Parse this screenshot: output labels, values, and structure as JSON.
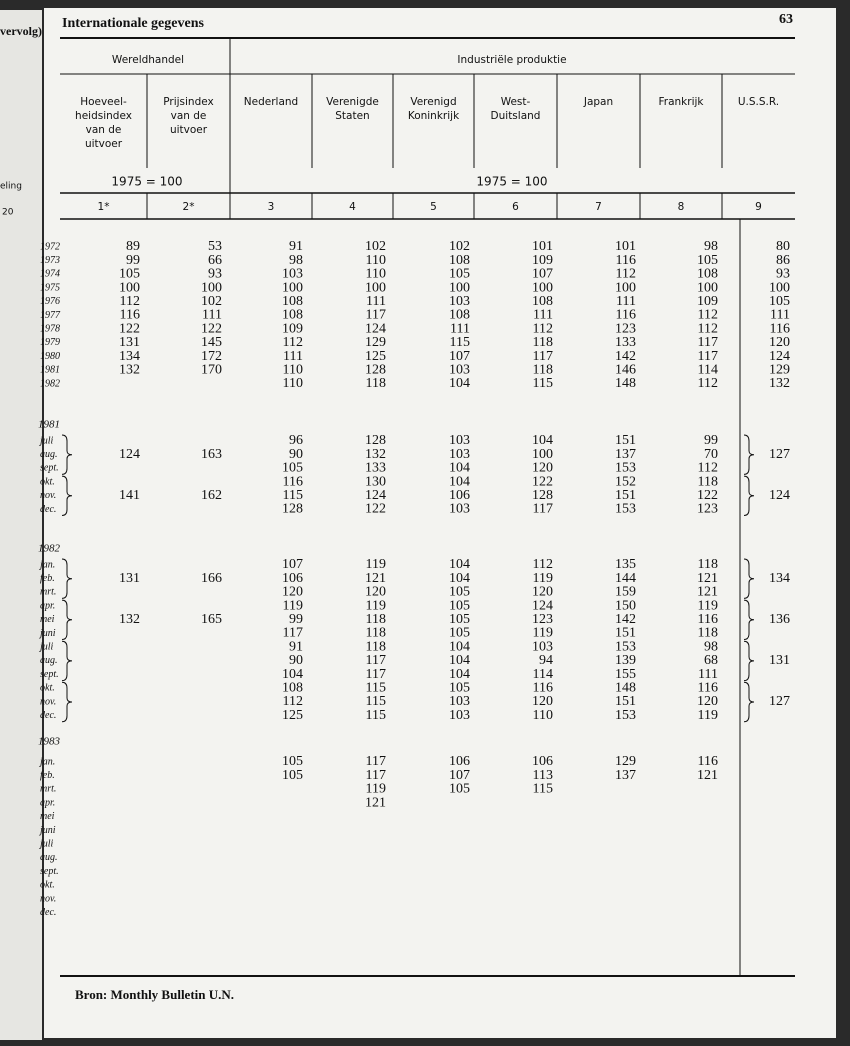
{
  "header": {
    "title": "Internationale gegevens",
    "page": "63",
    "margin_note": "vervolg)"
  },
  "margin_labels": [
    "eling",
    "20"
  ],
  "table": {
    "groups": [
      "Wereldhandel",
      "Industriële produktie"
    ],
    "columns": [
      [
        "Hoeveel-",
        "heidsindex",
        "van de",
        "uitvoer"
      ],
      [
        "Prijsindex",
        "van de",
        "uitvoer"
      ],
      [
        "Nederland"
      ],
      [
        "Verenigde",
        "Staten"
      ],
      [
        "Verenigd",
        "Koninkrijk"
      ],
      [
        "West-",
        "Duitsland"
      ],
      [
        "Japan"
      ],
      [
        "Frankrijk"
      ],
      [
        "U.S.S.R."
      ]
    ],
    "base": [
      "1975 = 100",
      "1975 = 100"
    ],
    "column_numbers": [
      "1*",
      "2*",
      "3",
      "4",
      "5",
      "6",
      "7",
      "8",
      "9"
    ],
    "sections": [
      {
        "label": null,
        "rows": [
          {
            "label": "1972",
            "cells": [
              89,
              53,
              91,
              102,
              102,
              101,
              101,
              98,
              80
            ]
          },
          {
            "label": "1973",
            "cells": [
              99,
              66,
              98,
              110,
              108,
              109,
              116,
              105,
              86
            ]
          },
          {
            "label": "1974",
            "cells": [
              105,
              93,
              103,
              110,
              105,
              107,
              112,
              108,
              93
            ]
          },
          {
            "label": "1975",
            "cells": [
              100,
              100,
              100,
              100,
              100,
              100,
              100,
              100,
              100
            ]
          },
          {
            "label": "1976",
            "cells": [
              112,
              102,
              108,
              111,
              103,
              108,
              111,
              109,
              105
            ]
          },
          {
            "label": "1977",
            "cells": [
              116,
              111,
              108,
              117,
              108,
              111,
              116,
              112,
              111
            ]
          },
          {
            "label": "1978",
            "cells": [
              122,
              122,
              109,
              124,
              111,
              112,
              123,
              112,
              116
            ]
          },
          {
            "label": "1979",
            "cells": [
              131,
              145,
              112,
              129,
              115,
              118,
              133,
              117,
              120
            ]
          },
          {
            "label": "1980",
            "cells": [
              134,
              172,
              111,
              125,
              107,
              117,
              142,
              117,
              124
            ]
          },
          {
            "label": "1981",
            "cells": [
              132,
              170,
              110,
              128,
              103,
              118,
              146,
              114,
              129
            ]
          },
          {
            "label": "1982",
            "cells": [
              null,
              null,
              110,
              118,
              104,
              115,
              148,
              112,
              132
            ]
          }
        ]
      },
      {
        "label": "1981",
        "rows": [
          {
            "label": "juli",
            "cells": [
              null,
              null,
              96,
              128,
              103,
              104,
              151,
              99,
              null
            ]
          },
          {
            "label": "aug.",
            "cells": [
              124,
              163,
              90,
              132,
              103,
              100,
              137,
              70,
              127
            ]
          },
          {
            "label": "sept.",
            "cells": [
              null,
              null,
              105,
              133,
              104,
              120,
              153,
              112,
              null
            ]
          },
          {
            "label": "okt.",
            "cells": [
              null,
              null,
              116,
              130,
              104,
              122,
              152,
              118,
              null
            ]
          },
          {
            "label": "nov.",
            "cells": [
              141,
              162,
              115,
              124,
              106,
              128,
              151,
              122,
              124
            ]
          },
          {
            "label": "dec.",
            "cells": [
              null,
              null,
              128,
              122,
              103,
              117,
              153,
              123,
              null
            ]
          }
        ]
      },
      {
        "label": "1982",
        "rows": [
          {
            "label": "jan.",
            "cells": [
              null,
              null,
              107,
              119,
              104,
              112,
              135,
              118,
              null
            ]
          },
          {
            "label": "feb.",
            "cells": [
              131,
              166,
              106,
              121,
              104,
              119,
              144,
              121,
              134
            ]
          },
          {
            "label": "mrt.",
            "cells": [
              null,
              null,
              120,
              120,
              105,
              120,
              159,
              121,
              null
            ]
          },
          {
            "label": "apr.",
            "cells": [
              null,
              null,
              119,
              119,
              105,
              124,
              150,
              119,
              null
            ]
          },
          {
            "label": "mei",
            "cells": [
              132,
              165,
              99,
              118,
              105,
              123,
              142,
              116,
              136
            ]
          },
          {
            "label": "juni",
            "cells": [
              null,
              null,
              117,
              118,
              105,
              119,
              151,
              118,
              null
            ]
          },
          {
            "label": "juli",
            "cells": [
              null,
              null,
              91,
              118,
              104,
              103,
              153,
              98,
              null
            ]
          },
          {
            "label": "aug.",
            "cells": [
              null,
              null,
              90,
              117,
              104,
              94,
              139,
              68,
              131
            ]
          },
          {
            "label": "sept.",
            "cells": [
              null,
              null,
              104,
              117,
              104,
              114,
              155,
              111,
              null
            ]
          },
          {
            "label": "okt.",
            "cells": [
              null,
              null,
              108,
              115,
              105,
              116,
              148,
              116,
              null
            ]
          },
          {
            "label": "nov.",
            "cells": [
              null,
              null,
              112,
              115,
              103,
              120,
              151,
              120,
              127
            ]
          },
          {
            "label": "dec.",
            "cells": [
              null,
              null,
              125,
              115,
              103,
              110,
              153,
              119,
              null
            ]
          }
        ]
      },
      {
        "label": "1983",
        "rows": [
          {
            "label": "jan.",
            "cells": [
              null,
              null,
              105,
              117,
              106,
              106,
              129,
              116,
              null
            ]
          },
          {
            "label": "feb.",
            "cells": [
              null,
              null,
              105,
              117,
              107,
              113,
              137,
              121,
              null
            ]
          },
          {
            "label": "mrt.",
            "cells": [
              null,
              null,
              null,
              119,
              105,
              115,
              null,
              null,
              null
            ]
          },
          {
            "label": "apr.",
            "cells": [
              null,
              null,
              null,
              121,
              null,
              null,
              null,
              null,
              null
            ]
          },
          {
            "label": "mei",
            "cells": [
              null,
              null,
              null,
              null,
              null,
              null,
              null,
              null,
              null
            ]
          },
          {
            "label": "juni",
            "cells": [
              null,
              null,
              null,
              null,
              null,
              null,
              null,
              null,
              null
            ]
          },
          {
            "label": "juli",
            "cells": [
              null,
              null,
              null,
              null,
              null,
              null,
              null,
              null,
              null
            ]
          },
          {
            "label": "aug.",
            "cells": [
              null,
              null,
              null,
              null,
              null,
              null,
              null,
              null,
              null
            ]
          },
          {
            "label": "sept.",
            "cells": [
              null,
              null,
              null,
              null,
              null,
              null,
              null,
              null,
              null
            ]
          },
          {
            "label": "okt.",
            "cells": [
              null,
              null,
              null,
              null,
              null,
              null,
              null,
              null,
              null
            ]
          },
          {
            "label": "nov.",
            "cells": [
              null,
              null,
              null,
              null,
              null,
              null,
              null,
              null,
              null
            ]
          },
          {
            "label": "dec.",
            "cells": [
              null,
              null,
              null,
              null,
              null,
              null,
              null,
              null,
              null
            ]
          }
        ]
      }
    ]
  },
  "footer": "Bron: Monthly Bulletin U.N."
}
